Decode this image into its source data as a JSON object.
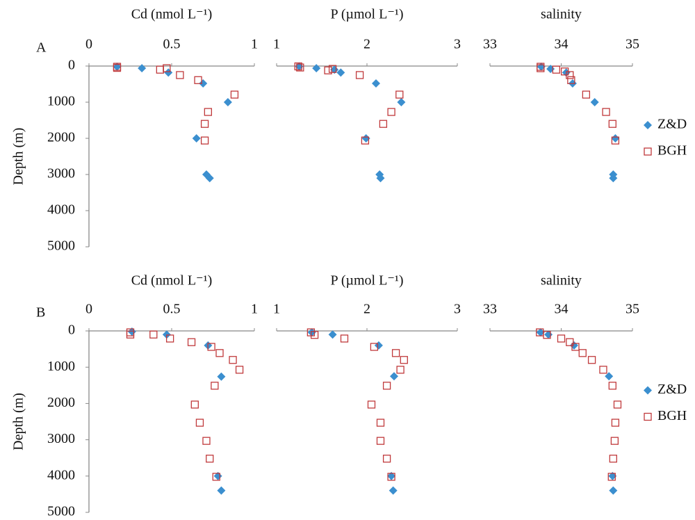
{
  "chart_data": [
    {
      "type": "scatter",
      "panel_label": "A",
      "title": "Cd (nmol L⁻¹)",
      "y_label": "Depth (m)",
      "xlim": [
        0,
        1
      ],
      "xticks": [
        0,
        0.5,
        1
      ],
      "ylim": [
        0,
        5000
      ],
      "y_reversed": true,
      "yticks": [
        0,
        1000,
        2000,
        3000,
        4000,
        5000
      ],
      "series": [
        {
          "color": "#3b8fcf",
          "marker": "diamond",
          "x": [
            0.17,
            0.32,
            0.48,
            0.69,
            0.84,
            0.65,
            0.71,
            0.73
          ],
          "values": [
            20,
            60,
            180,
            480,
            1000,
            2000,
            3000,
            3100
          ]
        },
        {
          "color": "#c0393b",
          "marker": "square",
          "x": [
            0.17,
            0.17,
            0.43,
            0.47,
            0.55,
            0.66,
            0.88,
            0.72,
            0.7,
            0.7
          ],
          "values": [
            20,
            50,
            100,
            60,
            250,
            390,
            790,
            1270,
            1600,
            2060
          ]
        }
      ]
    },
    {
      "type": "scatter",
      "title": "P (µmol L⁻¹)",
      "xlim": [
        1,
        3
      ],
      "xticks": [
        1,
        2,
        3
      ],
      "ylim": [
        0,
        5000
      ],
      "y_reversed": true,
      "series": [
        {
          "color": "#3b8fcf",
          "marker": "diamond",
          "x": [
            1.25,
            1.44,
            1.64,
            1.71,
            2.1,
            2.38,
            1.99,
            2.14,
            2.15
          ],
          "values": [
            10,
            60,
            100,
            180,
            480,
            1000,
            2000,
            3000,
            3100
          ]
        },
        {
          "color": "#c0393b",
          "marker": "square",
          "x": [
            1.24,
            1.26,
            1.57,
            1.62,
            1.92,
            2.36,
            2.27,
            2.18,
            1.98
          ],
          "values": [
            10,
            40,
            120,
            80,
            250,
            790,
            1270,
            1600,
            2060
          ]
        }
      ]
    },
    {
      "type": "scatter",
      "title": "salinity",
      "xlim": [
        33,
        35
      ],
      "xticks": [
        33,
        34,
        35
      ],
      "ylim": [
        0,
        5000
      ],
      "y_reversed": true,
      "legend": "right",
      "series": [
        {
          "name": "Z&D",
          "color": "#3b8fcf",
          "marker": "diamond",
          "x": [
            33.72,
            33.85,
            34.07,
            34.16,
            34.47,
            34.76,
            34.73,
            34.73
          ],
          "values": [
            20,
            80,
            180,
            480,
            1000,
            2000,
            3000,
            3100
          ]
        },
        {
          "name": "BGH",
          "color": "#c0393b",
          "marker": "square",
          "x": [
            33.71,
            33.71,
            33.93,
            34.05,
            34.12,
            34.14,
            34.35,
            34.63,
            34.72,
            34.76
          ],
          "values": [
            20,
            60,
            100,
            150,
            250,
            390,
            790,
            1270,
            1600,
            2060
          ]
        }
      ]
    },
    {
      "type": "scatter",
      "panel_label": "B",
      "title": "Cd (nmol L⁻¹)",
      "y_label": "Depth (m)",
      "xlim": [
        0,
        1
      ],
      "xticks": [
        0,
        0.5,
        1
      ],
      "ylim": [
        0,
        5000
      ],
      "y_reversed": true,
      "yticks": [
        0,
        1000,
        2000,
        3000,
        4000,
        5000
      ],
      "series": [
        {
          "color": "#3b8fcf",
          "marker": "diamond",
          "x": [
            0.26,
            0.47,
            0.72,
            0.8,
            0.78,
            0.8
          ],
          "values": [
            20,
            100,
            400,
            1260,
            4000,
            4400
          ]
        },
        {
          "color": "#c0393b",
          "marker": "square",
          "x": [
            0.25,
            0.25,
            0.39,
            0.49,
            0.62,
            0.74,
            0.79,
            0.87,
            0.91,
            0.76,
            0.64,
            0.67,
            0.71,
            0.73,
            0.77
          ],
          "values": [
            40,
            100,
            100,
            210,
            310,
            440,
            610,
            800,
            1070,
            1510,
            2030,
            2530,
            3030,
            3520,
            4020
          ]
        }
      ]
    },
    {
      "type": "scatter",
      "title": "P (µmol L⁻¹)",
      "xlim": [
        1,
        3
      ],
      "xticks": [
        1,
        2,
        3
      ],
      "ylim": [
        0,
        5000
      ],
      "y_reversed": true,
      "series": [
        {
          "color": "#3b8fcf",
          "marker": "diamond",
          "x": [
            1.39,
            1.62,
            2.13,
            2.3,
            2.27,
            2.29
          ],
          "values": [
            40,
            100,
            400,
            1250,
            4000,
            4400
          ]
        },
        {
          "color": "#c0393b",
          "marker": "square",
          "x": [
            1.38,
            1.42,
            1.75,
            2.08,
            2.32,
            2.41,
            2.37,
            2.22,
            2.05,
            2.15,
            2.15,
            2.22,
            2.27
          ],
          "values": [
            40,
            110,
            210,
            440,
            610,
            800,
            1070,
            1510,
            2030,
            2530,
            3030,
            3520,
            4020
          ]
        }
      ]
    },
    {
      "type": "scatter",
      "title": "salinity",
      "xlim": [
        33,
        35
      ],
      "xticks": [
        33,
        34,
        35
      ],
      "ylim": [
        0,
        5000
      ],
      "y_reversed": true,
      "legend": "right",
      "series": [
        {
          "name": "Z&D",
          "color": "#3b8fcf",
          "marker": "diamond",
          "x": [
            33.71,
            33.82,
            34.18,
            34.67,
            34.72,
            34.73
          ],
          "values": [
            40,
            100,
            400,
            1250,
            4000,
            4400
          ]
        },
        {
          "name": "BGH",
          "color": "#c0393b",
          "marker": "square",
          "x": [
            33.7,
            33.8,
            34.0,
            34.12,
            34.2,
            34.3,
            34.43,
            34.59,
            34.72,
            34.79,
            34.76,
            34.75,
            34.73,
            34.71
          ],
          "values": [
            40,
            110,
            210,
            310,
            440,
            610,
            800,
            1070,
            1510,
            2030,
            2530,
            3030,
            3520,
            4020
          ]
        }
      ]
    }
  ]
}
